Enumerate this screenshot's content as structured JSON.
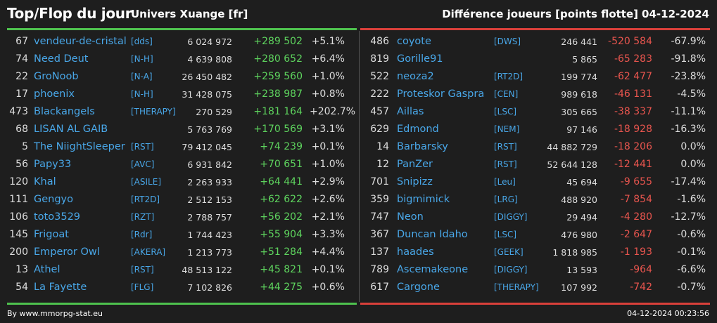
{
  "header": {
    "title": "Top/Flop du jour",
    "universe": "Univers Xuange [fr]",
    "metric": "Différence joueurs [points flotte]",
    "date": "04-12-2024"
  },
  "colors": {
    "top_accent": "#4ec24e",
    "flop_accent": "#d9403a",
    "name_color": "#49a7e8"
  },
  "top": [
    {
      "rank": "67",
      "name": "vendeur-de-cristal",
      "alliance": "[dds]",
      "points": "6 024 972",
      "diff": "+289 502",
      "pct": "+5.1%"
    },
    {
      "rank": "74",
      "name": "Need Deut",
      "alliance": "[N-H]",
      "points": "4 639 808",
      "diff": "+280 652",
      "pct": "+6.4%"
    },
    {
      "rank": "22",
      "name": "GroNoob",
      "alliance": "[N-A]",
      "points": "26 450 482",
      "diff": "+259 560",
      "pct": "+1.0%"
    },
    {
      "rank": "17",
      "name": "phoenix",
      "alliance": "[N-H]",
      "points": "31 428 075",
      "diff": "+238 987",
      "pct": "+0.8%"
    },
    {
      "rank": "473",
      "name": "Blackangels",
      "alliance": "[THERAPY]",
      "points": "270 529",
      "diff": "+181 164",
      "pct": "+202.7%"
    },
    {
      "rank": "68",
      "name": "LISAN AL GAIB",
      "alliance": "",
      "points": "5 763 769",
      "diff": "+170 569",
      "pct": "+3.1%"
    },
    {
      "rank": "5",
      "name": "The NiightSleeper",
      "alliance": "[RST]",
      "points": "79 412 045",
      "diff": "+74 239",
      "pct": "+0.1%"
    },
    {
      "rank": "56",
      "name": "Papy33",
      "alliance": "[AVC]",
      "points": "6 931 842",
      "diff": "+70 651",
      "pct": "+1.0%"
    },
    {
      "rank": "120",
      "name": "Khal",
      "alliance": "[ASILE]",
      "points": "2 263 933",
      "diff": "+64 441",
      "pct": "+2.9%"
    },
    {
      "rank": "111",
      "name": "Gengyo",
      "alliance": "[RT2D]",
      "points": "2 512 153",
      "diff": "+62 622",
      "pct": "+2.6%"
    },
    {
      "rank": "106",
      "name": "toto3529",
      "alliance": "[RZT]",
      "points": "2 788 757",
      "diff": "+56 202",
      "pct": "+2.1%"
    },
    {
      "rank": "145",
      "name": "Frigoat",
      "alliance": "[Rdr]",
      "points": "1 744 423",
      "diff": "+55 904",
      "pct": "+3.3%"
    },
    {
      "rank": "200",
      "name": "Emperor Owl",
      "alliance": "[AKERA]",
      "points": "1 213 773",
      "diff": "+51 284",
      "pct": "+4.4%"
    },
    {
      "rank": "13",
      "name": "Athel",
      "alliance": "[RST]",
      "points": "48 513 122",
      "diff": "+45 821",
      "pct": "+0.1%"
    },
    {
      "rank": "54",
      "name": "La Fayette",
      "alliance": "[FLG]",
      "points": "7 102 826",
      "diff": "+44 275",
      "pct": "+0.6%"
    }
  ],
  "flop": [
    {
      "rank": "486",
      "name": "coyote",
      "alliance": "[DWS]",
      "points": "246 441",
      "diff": "-520 584",
      "pct": "-67.9%"
    },
    {
      "rank": "819",
      "name": "Gorille91",
      "alliance": "",
      "points": "5 865",
      "diff": "-65 283",
      "pct": "-91.8%"
    },
    {
      "rank": "522",
      "name": "neoza2",
      "alliance": "[RT2D]",
      "points": "199 774",
      "diff": "-62 477",
      "pct": "-23.8%"
    },
    {
      "rank": "222",
      "name": "Proteskor Gaspra",
      "alliance": "[CEN]",
      "points": "989 618",
      "diff": "-46 131",
      "pct": "-4.5%"
    },
    {
      "rank": "457",
      "name": "Aillas",
      "alliance": "[LSC]",
      "points": "305 665",
      "diff": "-38 337",
      "pct": "-11.1%"
    },
    {
      "rank": "629",
      "name": "Edmond",
      "alliance": "[NEM]",
      "points": "97 146",
      "diff": "-18 928",
      "pct": "-16.3%"
    },
    {
      "rank": "14",
      "name": "Barbarsky",
      "alliance": "[RST]",
      "points": "44 882 729",
      "diff": "-18 206",
      "pct": "0.0%"
    },
    {
      "rank": "12",
      "name": "PanZer",
      "alliance": "[RST]",
      "points": "52 644 128",
      "diff": "-12 441",
      "pct": "0.0%"
    },
    {
      "rank": "701",
      "name": "Snipizz",
      "alliance": "[Leu]",
      "points": "45 694",
      "diff": "-9 655",
      "pct": "-17.4%"
    },
    {
      "rank": "359",
      "name": "bigmimick",
      "alliance": "[LRG]",
      "points": "488 920",
      "diff": "-7 854",
      "pct": "-1.6%"
    },
    {
      "rank": "747",
      "name": "Neon",
      "alliance": "[DIGGY]",
      "points": "29 494",
      "diff": "-4 280",
      "pct": "-12.7%"
    },
    {
      "rank": "367",
      "name": "Duncan Idaho",
      "alliance": "[LSC]",
      "points": "476 980",
      "diff": "-2 647",
      "pct": "-0.6%"
    },
    {
      "rank": "137",
      "name": "haades",
      "alliance": "[GEEK]",
      "points": "1 818 985",
      "diff": "-1 193",
      "pct": "-0.1%"
    },
    {
      "rank": "789",
      "name": "Ascemakeone",
      "alliance": "[DIGGY]",
      "points": "13 593",
      "diff": "-964",
      "pct": "-6.6%"
    },
    {
      "rank": "617",
      "name": "Cargone",
      "alliance": "[THERAPY]",
      "points": "107 992",
      "diff": "-742",
      "pct": "-0.7%"
    }
  ],
  "footer": {
    "credit": "By www.mmorpg-stat.eu",
    "timestamp": "04-12-2024 00:23:56"
  }
}
